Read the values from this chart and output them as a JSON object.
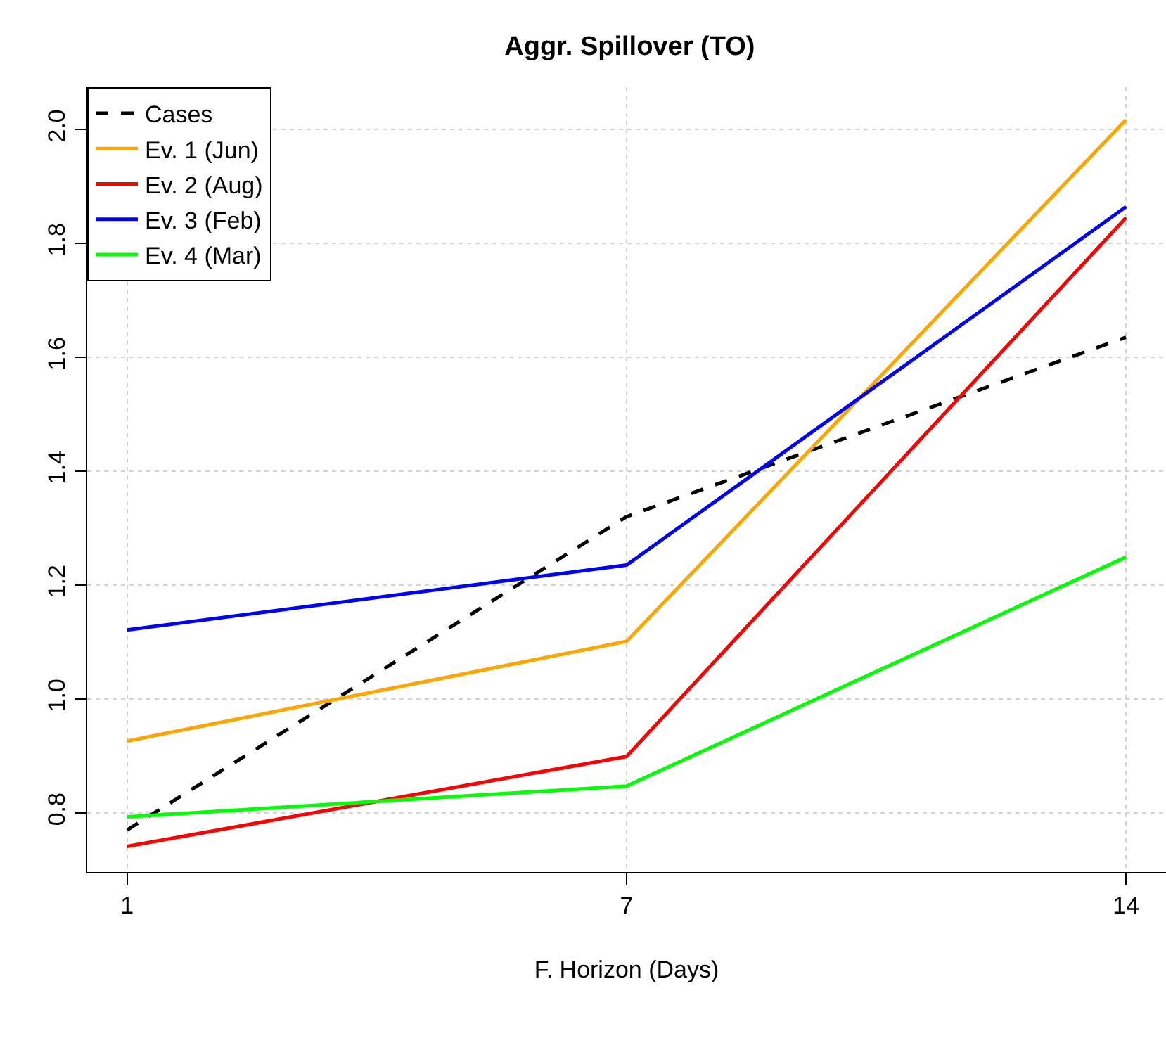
{
  "chart_data": {
    "type": "line",
    "title": "Aggr. Spillover (TO)",
    "xlabel": "F. Horizon (Days)",
    "categories": [
      "1",
      "7",
      "14"
    ],
    "ylim": [
      0.696,
      2.074
    ],
    "yticks": [
      {
        "value": 0.8,
        "label": "0.8"
      },
      {
        "value": 1.0,
        "label": "1.0"
      },
      {
        "value": 1.2,
        "label": "1.2"
      },
      {
        "value": 1.4,
        "label": "1.4"
      },
      {
        "value": 1.6,
        "label": "1.6"
      },
      {
        "value": 1.8,
        "label": "1.8"
      },
      {
        "value": 2.0,
        "label": "2.0"
      }
    ],
    "grid": true,
    "legend": "top left",
    "marker": "none",
    "series": [
      {
        "name": "Cases",
        "color": "#000000",
        "line_style": "dashed",
        "values": [
          0.77,
          1.32,
          1.635
        ]
      },
      {
        "name": "Ev. 1 (Jun)",
        "color": "#ffa500",
        "values": [
          0.926,
          1.101,
          2.017
        ]
      },
      {
        "name": "Ev. 2 (Aug)",
        "color": "#ff0000",
        "values": [
          0.741,
          0.899,
          1.845
        ]
      },
      {
        "name": "Ev. 3 (Feb)",
        "color": "#0000ff",
        "values": [
          1.121,
          1.235,
          1.864
        ]
      },
      {
        "name": "Ev. 4 (Mar)",
        "color": "#00ff00",
        "values": [
          0.793,
          0.847,
          1.249
        ]
      }
    ]
  }
}
